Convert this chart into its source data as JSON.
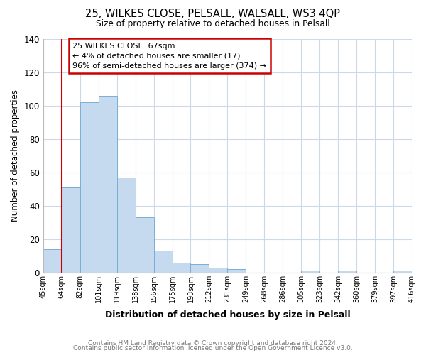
{
  "title1": "25, WILKES CLOSE, PELSALL, WALSALL, WS3 4QP",
  "title2": "Size of property relative to detached houses in Pelsall",
  "xlabel": "Distribution of detached houses by size in Pelsall",
  "ylabel": "Number of detached properties",
  "bar_values": [
    14,
    51,
    102,
    106,
    57,
    33,
    13,
    6,
    5,
    3,
    2,
    0,
    0,
    0,
    1,
    0,
    1,
    0,
    0,
    1
  ],
  "bin_labels": [
    "45sqm",
    "64sqm",
    "82sqm",
    "101sqm",
    "119sqm",
    "138sqm",
    "156sqm",
    "175sqm",
    "193sqm",
    "212sqm",
    "231sqm",
    "249sqm",
    "268sqm",
    "286sqm",
    "305sqm",
    "323sqm",
    "342sqm",
    "360sqm",
    "379sqm",
    "397sqm",
    "416sqm"
  ],
  "bar_color": "#c5d9ef",
  "bar_edge_color": "#7aafd4",
  "subject_line_color": "#cc0000",
  "subject_line_bin": 1,
  "annotation_text": "25 WILKES CLOSE: 67sqm\n← 4% of detached houses are smaller (17)\n96% of semi-detached houses are larger (374) →",
  "annotation_box_color": "#ffffff",
  "annotation_box_edge": "#cc0000",
  "ylim": [
    0,
    140
  ],
  "yticks": [
    0,
    20,
    40,
    60,
    80,
    100,
    120,
    140
  ],
  "footer1": "Contains HM Land Registry data © Crown copyright and database right 2024.",
  "footer2": "Contains public sector information licensed under the Open Government Licence v3.0.",
  "background_color": "#ffffff",
  "grid_color": "#ccd9e8"
}
